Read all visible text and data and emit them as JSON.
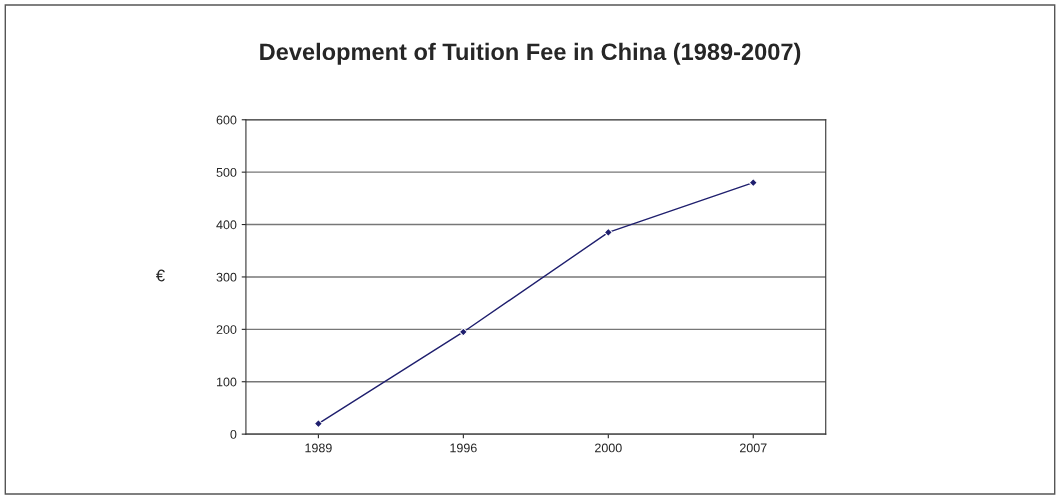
{
  "chart_data": {
    "type": "line",
    "title": "Development of Tuition Fee in China (1989-2007)",
    "ylabel": "€",
    "categories": [
      "1989",
      "1996",
      "2000",
      "2007"
    ],
    "series": [
      {
        "color": "#1f1f6e",
        "values": [
          20,
          195,
          385,
          480
        ]
      }
    ],
    "ylim": [
      0,
      600
    ],
    "yticks": [
      0,
      100,
      200,
      300,
      400,
      500,
      600
    ],
    "grid": "y",
    "marker": "diamond",
    "line_style": "solid",
    "legend": false
  }
}
